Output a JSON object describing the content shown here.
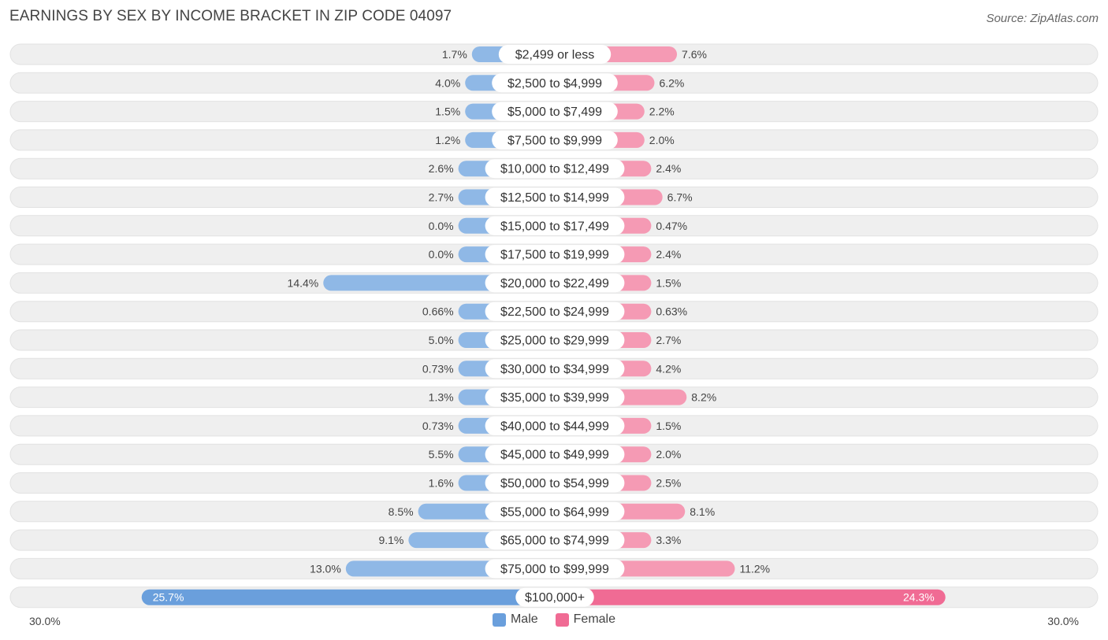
{
  "title": "EARNINGS BY SEX BY INCOME BRACKET IN ZIP CODE 04097",
  "source": "Source: ZipAtlas.com",
  "colors": {
    "male": "#8fb8e6",
    "male_strong": "#6a9fdc",
    "female": "#f59ab4",
    "female_strong": "#f06b94"
  },
  "chart_data": {
    "type": "bar",
    "orientation": "horizontal-diverging",
    "categories": [
      "$2,499 or less",
      "$2,500 to $4,999",
      "$5,000 to $7,499",
      "$7,500 to $9,999",
      "$10,000 to $12,499",
      "$12,500 to $14,999",
      "$15,000 to $17,499",
      "$17,500 to $19,999",
      "$20,000 to $22,499",
      "$22,500 to $24,999",
      "$25,000 to $29,999",
      "$30,000 to $34,999",
      "$35,000 to $39,999",
      "$40,000 to $44,999",
      "$45,000 to $49,999",
      "$50,000 to $54,999",
      "$55,000 to $64,999",
      "$65,000 to $74,999",
      "$75,000 to $99,999",
      "$100,000+"
    ],
    "series": [
      {
        "name": "Male",
        "values": [
          1.7,
          4.0,
          1.5,
          1.2,
          2.6,
          2.7,
          0.0,
          0.0,
          14.4,
          0.66,
          5.0,
          0.73,
          1.3,
          0.73,
          5.5,
          1.6,
          8.5,
          9.1,
          13.0,
          25.7
        ],
        "labels": [
          "1.7%",
          "4.0%",
          "1.5%",
          "1.2%",
          "2.6%",
          "2.7%",
          "0.0%",
          "0.0%",
          "14.4%",
          "0.66%",
          "5.0%",
          "0.73%",
          "1.3%",
          "0.73%",
          "5.5%",
          "1.6%",
          "8.5%",
          "9.1%",
          "13.0%",
          "25.7%"
        ]
      },
      {
        "name": "Female",
        "values": [
          7.6,
          6.2,
          2.2,
          2.0,
          2.4,
          6.7,
          0.47,
          2.4,
          1.5,
          0.63,
          2.7,
          4.2,
          8.2,
          1.5,
          2.0,
          2.5,
          8.1,
          3.3,
          11.2,
          24.3
        ],
        "labels": [
          "7.6%",
          "6.2%",
          "2.2%",
          "2.0%",
          "2.4%",
          "6.7%",
          "0.47%",
          "2.4%",
          "1.5%",
          "0.63%",
          "2.7%",
          "4.2%",
          "8.2%",
          "1.5%",
          "2.0%",
          "2.5%",
          "8.1%",
          "3.3%",
          "11.2%",
          "24.3%"
        ]
      }
    ],
    "axis_min_label": "30.0%",
    "axis_max_label": "30.0%",
    "xlim": [
      -30,
      30
    ],
    "legend": [
      "Male",
      "Female"
    ],
    "legend_position": "bottom-center"
  }
}
